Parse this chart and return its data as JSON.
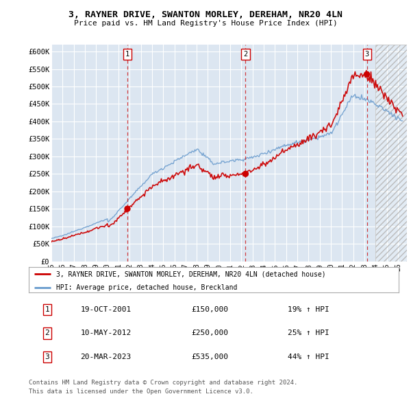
{
  "title": "3, RAYNER DRIVE, SWANTON MORLEY, DEREHAM, NR20 4LN",
  "subtitle": "Price paid vs. HM Land Registry's House Price Index (HPI)",
  "background_color": "#ffffff",
  "plot_bg_color": "#dce6f1",
  "grid_color": "#ffffff",
  "ylim": [
    0,
    620000
  ],
  "yticks": [
    0,
    50000,
    100000,
    150000,
    200000,
    250000,
    300000,
    350000,
    400000,
    450000,
    500000,
    550000,
    600000
  ],
  "ytick_labels": [
    "£0",
    "£50K",
    "£100K",
    "£150K",
    "£200K",
    "£250K",
    "£300K",
    "£350K",
    "£400K",
    "£450K",
    "£500K",
    "£550K",
    "£600K"
  ],
  "xlim_start": 1995.0,
  "xlim_end": 2026.8,
  "xticks": [
    1995,
    1996,
    1997,
    1998,
    1999,
    2000,
    2001,
    2002,
    2003,
    2004,
    2005,
    2006,
    2007,
    2008,
    2009,
    2010,
    2011,
    2012,
    2013,
    2014,
    2015,
    2016,
    2017,
    2018,
    2019,
    2020,
    2021,
    2022,
    2023,
    2024,
    2025,
    2026
  ],
  "sale_dates": [
    2001.8,
    2012.37,
    2023.22
  ],
  "sale_prices": [
    150000,
    250000,
    535000
  ],
  "sale_labels": [
    "1",
    "2",
    "3"
  ],
  "property_line_color": "#cc0000",
  "hpi_line_color": "#6699cc",
  "legend_label_property": "3, RAYNER DRIVE, SWANTON MORLEY, DEREHAM, NR20 4LN (detached house)",
  "legend_label_hpi": "HPI: Average price, detached house, Breckland",
  "table_rows": [
    [
      "1",
      "19-OCT-2001",
      "£150,000",
      "19% ↑ HPI"
    ],
    [
      "2",
      "10-MAY-2012",
      "£250,000",
      "25% ↑ HPI"
    ],
    [
      "3",
      "20-MAR-2023",
      "£535,000",
      "44% ↑ HPI"
    ]
  ],
  "footer_line1": "Contains HM Land Registry data © Crown copyright and database right 2024.",
  "footer_line2": "This data is licensed under the Open Government Licence v3.0.",
  "hatch_start": 2024.0,
  "highlight_col_date": 2023.22,
  "highlight_col_color": "#d8e8f4"
}
